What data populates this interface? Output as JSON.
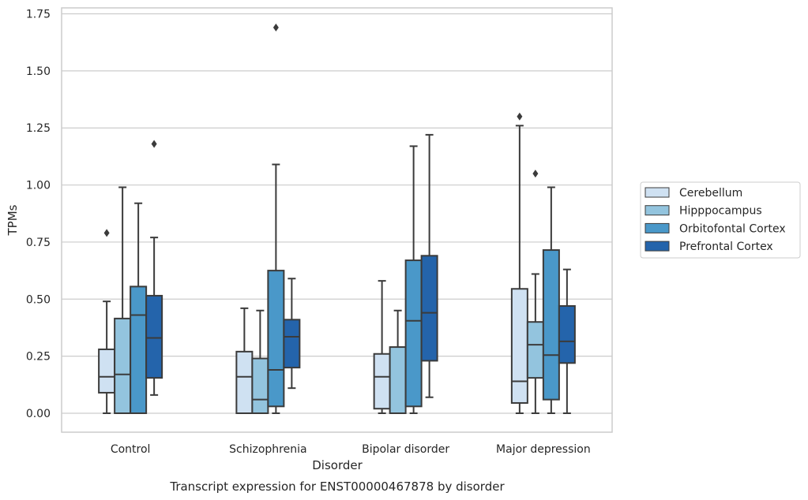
{
  "chart_data": {
    "type": "box",
    "title": "Transcript expression for ENST00000467878 by disorder",
    "xlabel": "Disorder",
    "ylabel": "TPMs",
    "ylim": [
      -0.08,
      1.77
    ],
    "yticks": [
      0.0,
      0.25,
      0.5,
      0.75,
      1.0,
      1.25,
      1.5,
      1.75
    ],
    "ytick_labels": [
      "0.00",
      "0.25",
      "0.50",
      "0.75",
      "1.00",
      "1.25",
      "1.50",
      "1.75"
    ],
    "categories": [
      "Control",
      "Schizophrenia",
      "Bipolar disorder",
      "Major depression"
    ],
    "grid": "horizontal",
    "legend_position": "right",
    "series": [
      {
        "name": "Cerebellum",
        "color": "#cfe1f2",
        "boxes": [
          {
            "min": 0.0,
            "q1": 0.09,
            "median": 0.16,
            "q3": 0.28,
            "max": 0.49,
            "outliers": [
              0.79
            ]
          },
          {
            "min": 0.0,
            "q1": 0.0,
            "median": 0.16,
            "q3": 0.27,
            "max": 0.46,
            "outliers": []
          },
          {
            "min": 0.0,
            "q1": 0.02,
            "median": 0.16,
            "q3": 0.26,
            "max": 0.58,
            "outliers": []
          },
          {
            "min": 0.0,
            "q1": 0.045,
            "median": 0.14,
            "q3": 0.545,
            "max": 1.26,
            "outliers": [
              1.3
            ]
          }
        ]
      },
      {
        "name": "Hipppocampus",
        "color": "#93c4de",
        "boxes": [
          {
            "min": 0.0,
            "q1": 0.0,
            "median": 0.17,
            "q3": 0.415,
            "max": 0.99,
            "outliers": []
          },
          {
            "min": 0.0,
            "q1": 0.0,
            "median": 0.06,
            "q3": 0.24,
            "max": 0.45,
            "outliers": []
          },
          {
            "min": 0.0,
            "q1": 0.0,
            "median": 0.0,
            "q3": 0.29,
            "max": 0.45,
            "outliers": []
          },
          {
            "min": 0.0,
            "q1": 0.155,
            "median": 0.3,
            "q3": 0.4,
            "max": 0.61,
            "outliers": [
              1.05
            ]
          }
        ]
      },
      {
        "name": "Orbitofontal Cortex",
        "color": "#4a98c9",
        "boxes": [
          {
            "min": 0.0,
            "q1": 0.0,
            "median": 0.43,
            "q3": 0.555,
            "max": 0.92,
            "outliers": []
          },
          {
            "min": 0.0,
            "q1": 0.03,
            "median": 0.19,
            "q3": 0.625,
            "max": 1.09,
            "outliers": [
              1.69
            ]
          },
          {
            "min": 0.0,
            "q1": 0.03,
            "median": 0.405,
            "q3": 0.67,
            "max": 1.17,
            "outliers": []
          },
          {
            "min": 0.0,
            "q1": 0.06,
            "median": 0.255,
            "q3": 0.715,
            "max": 0.99,
            "outliers": []
          }
        ]
      },
      {
        "name": "Prefrontal Cortex",
        "color": "#2464ab",
        "boxes": [
          {
            "min": 0.08,
            "q1": 0.155,
            "median": 0.33,
            "q3": 0.515,
            "max": 0.77,
            "outliers": [
              1.18
            ]
          },
          {
            "min": 0.11,
            "q1": 0.2,
            "median": 0.335,
            "q3": 0.41,
            "max": 0.59,
            "outliers": []
          },
          {
            "min": 0.07,
            "q1": 0.23,
            "median": 0.44,
            "q3": 0.69,
            "max": 1.22,
            "outliers": []
          },
          {
            "min": 0.0,
            "q1": 0.22,
            "median": 0.315,
            "q3": 0.47,
            "max": 0.63,
            "outliers": []
          }
        ]
      }
    ]
  }
}
